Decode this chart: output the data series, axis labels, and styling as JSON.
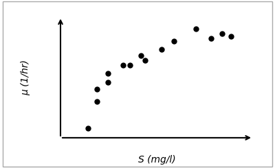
{
  "x_data": [
    0.15,
    0.2,
    0.2,
    0.26,
    0.26,
    0.34,
    0.38,
    0.44,
    0.46,
    0.55,
    0.62,
    0.74,
    0.82,
    0.88,
    0.93
  ],
  "y_data": [
    0.08,
    0.3,
    0.4,
    0.46,
    0.53,
    0.6,
    0.6,
    0.68,
    0.64,
    0.73,
    0.8,
    0.9,
    0.82,
    0.86,
    0.84
  ],
  "xlabel": "S (mg/l)",
  "ylabel": "μ (1/hr)",
  "marker_color": "black",
  "marker_size": 5,
  "bg_color": "white",
  "xlim": [
    0.0,
    1.05
  ],
  "ylim": [
    0.0,
    1.0
  ]
}
